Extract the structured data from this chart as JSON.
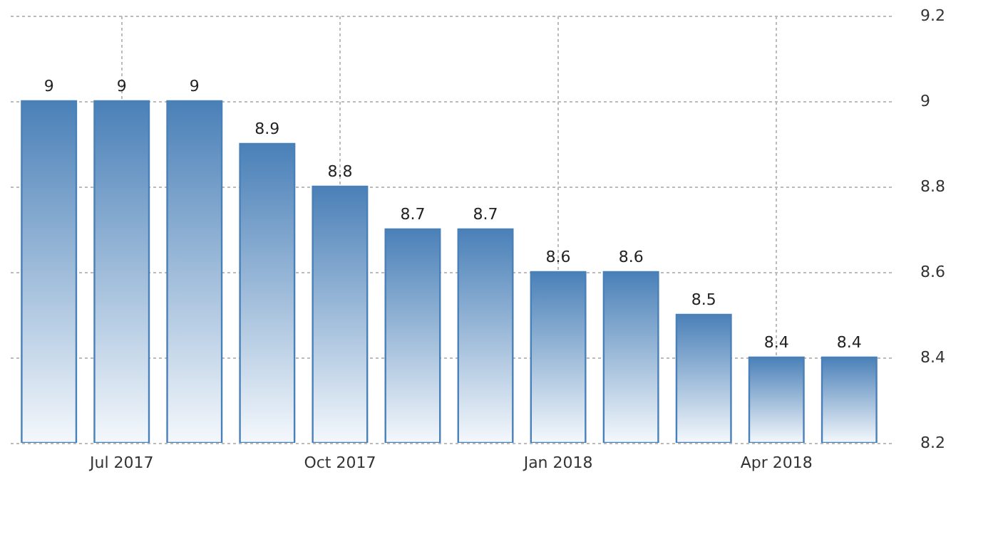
{
  "chart_data": {
    "type": "bar",
    "categories": [
      null,
      "Jul 2017",
      null,
      null,
      "Oct 2017",
      null,
      null,
      "Jan 2018",
      null,
      null,
      "Apr 2018",
      null
    ],
    "values": [
      9,
      9,
      9,
      8.9,
      8.8,
      8.7,
      8.7,
      8.6,
      8.6,
      8.5,
      8.4,
      8.4
    ],
    "color": "#4a80b8",
    "ylim": [
      8.2,
      9.2
    ],
    "yticks": [
      8.2,
      8.4,
      8.6,
      8.8,
      9,
      9.2
    ],
    "grid": true,
    "data_labels": true
  }
}
